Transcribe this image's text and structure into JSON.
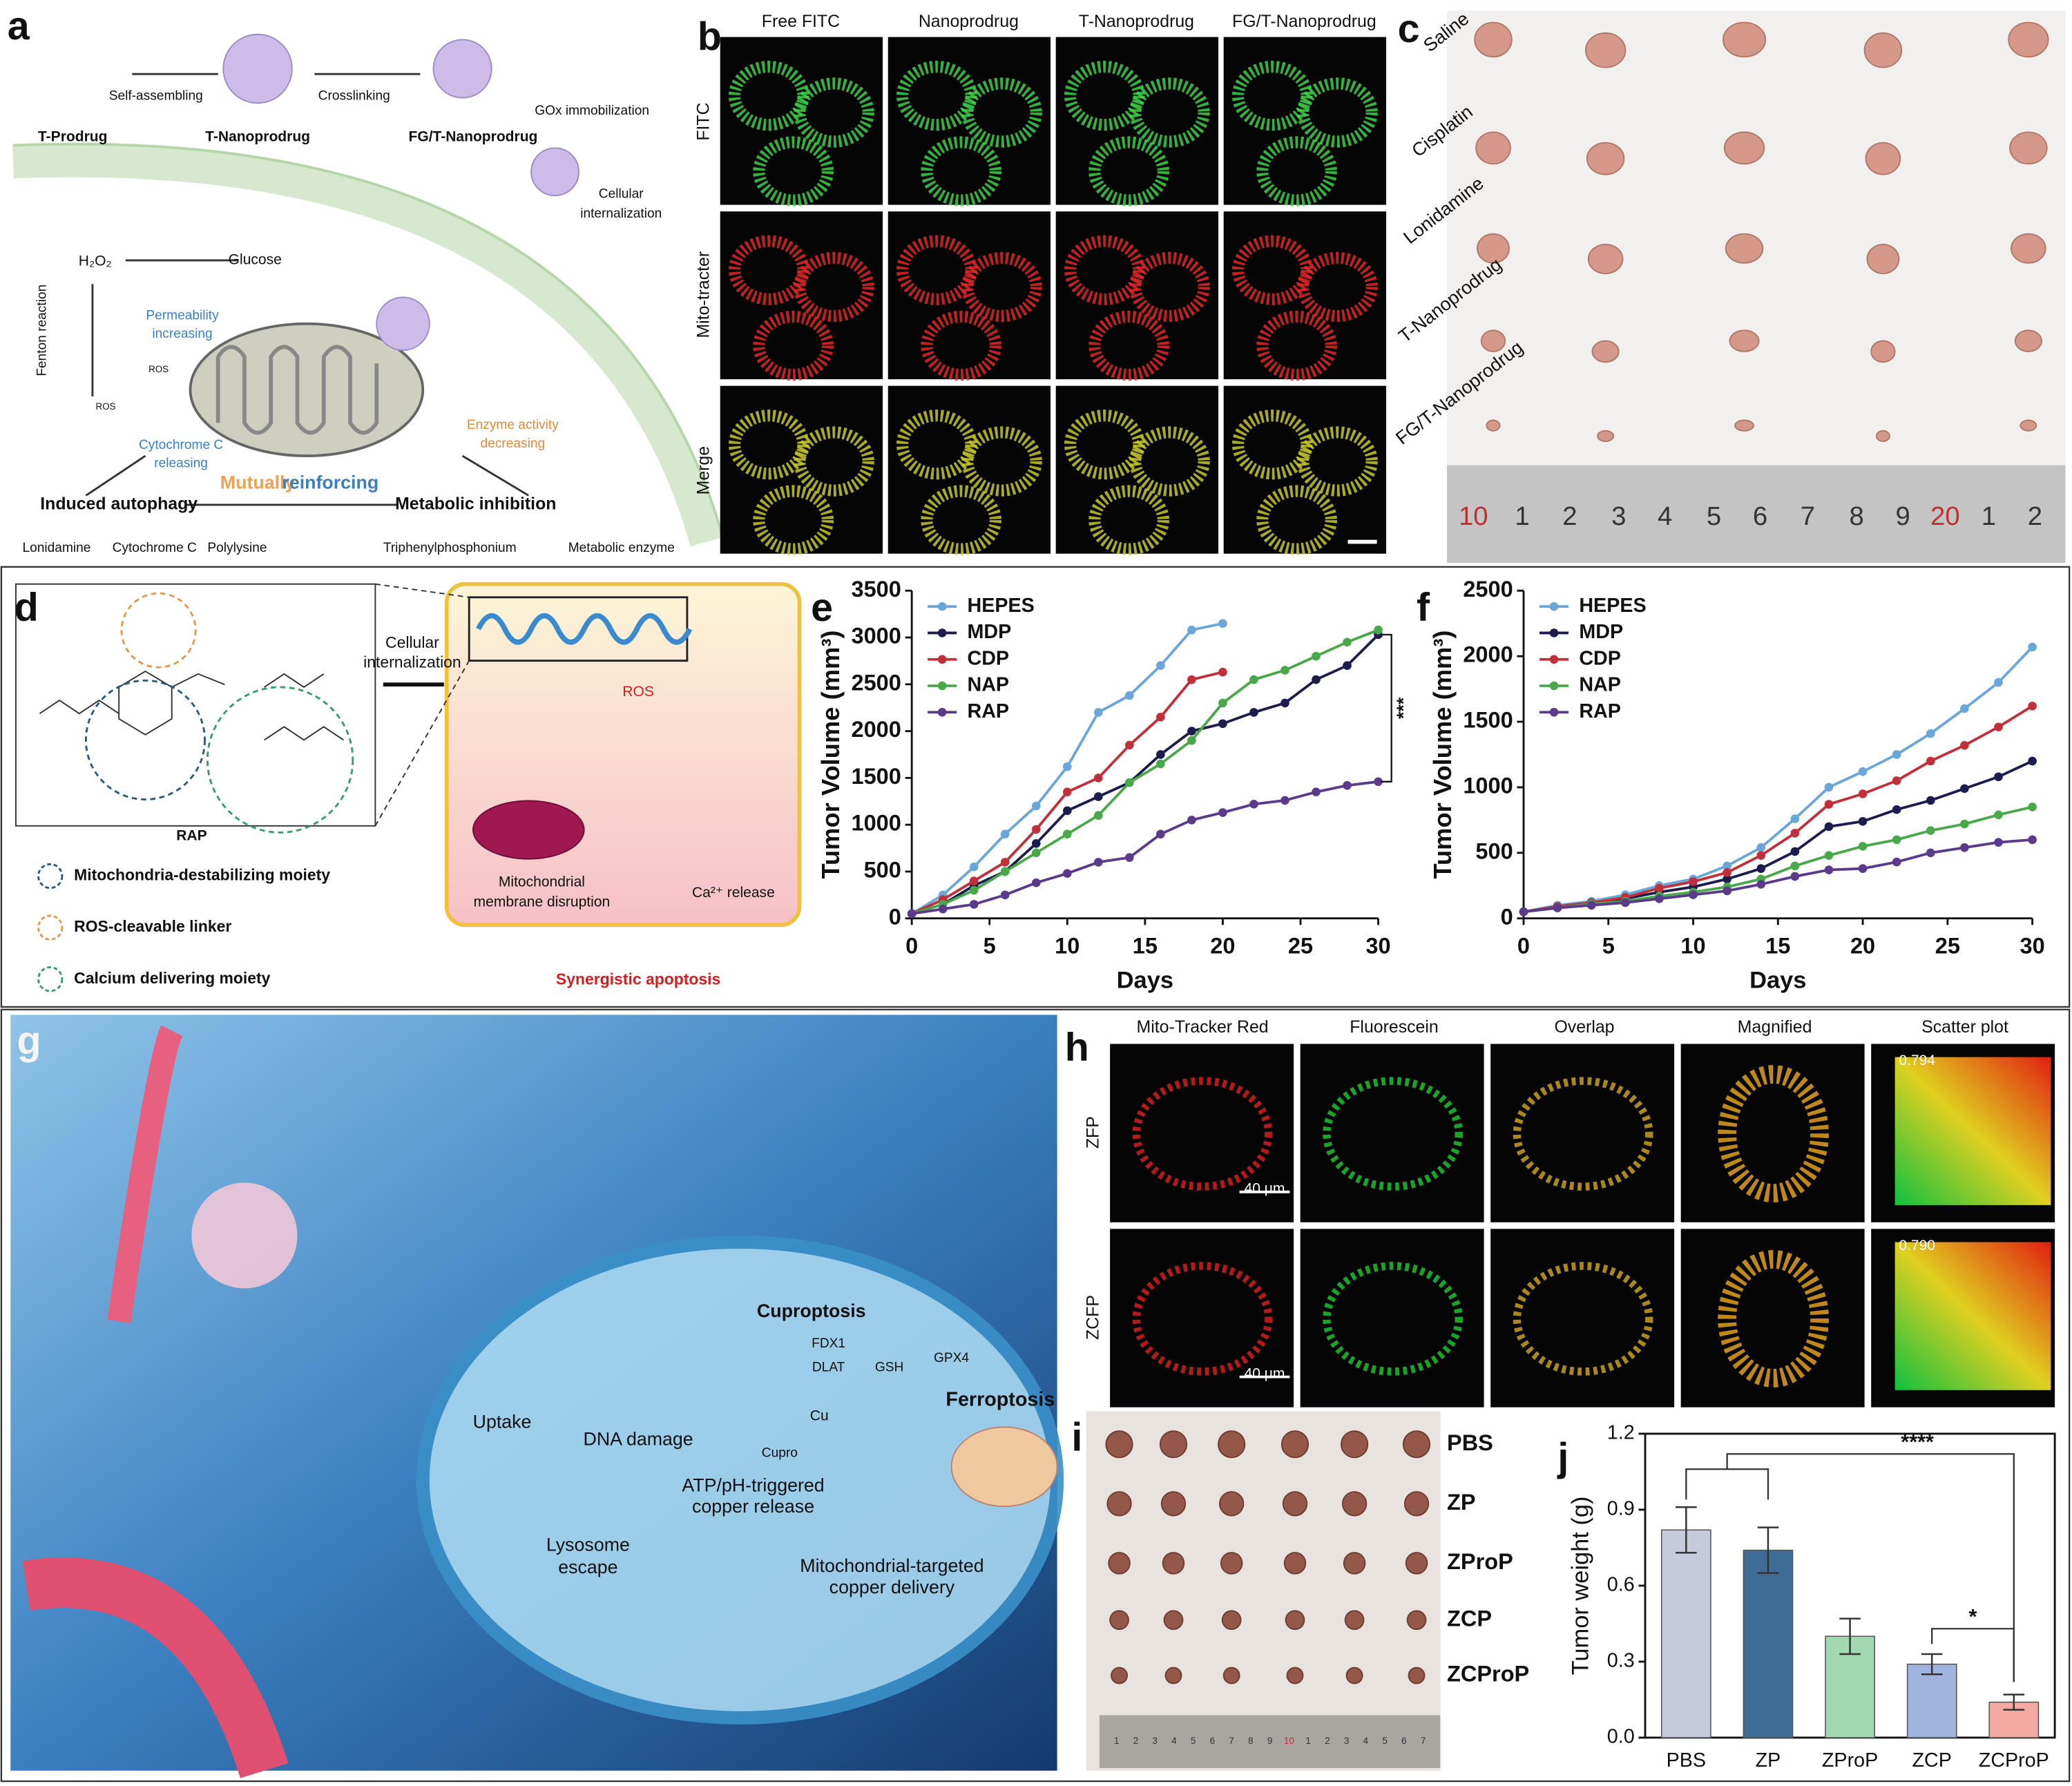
{
  "panel_letters": [
    "a",
    "b",
    "c",
    "d",
    "e",
    "f",
    "g",
    "h",
    "i",
    "j"
  ],
  "panel_a": {
    "texts": [
      "Self-assembling",
      "Crosslinking",
      "GOx immobilization",
      "T-Prodrug",
      "T-Nanoprodrug",
      "FG/T-Nanoprodrug",
      "Cellular",
      "internalization",
      "H₂O₂",
      "Glucose",
      "Fenton reaction",
      "Permeability",
      "increasing",
      "ROS",
      "ROS",
      "Cytochrome C",
      "releasing",
      "Enzyme activity",
      "decreasing",
      "Mutually",
      "reinforcing",
      "Induced autophagy",
      "Metabolic inhibition"
    ],
    "legend": [
      "Lonidamine",
      "Cytochrome C",
      "Polylysine",
      "Triphenylphosphonium",
      "Metabolic enzyme"
    ]
  },
  "panel_b": {
    "columns": [
      "Free FITC",
      "Nanoprodrug",
      "T-Nanoprodrug",
      "FG/T-Nanoprodrug"
    ],
    "rows": [
      "FITC",
      "Mito-tracter",
      "Merge"
    ]
  },
  "panel_c": {
    "groups": [
      "Saline",
      "Cisplatin",
      "Lonidamine",
      "T-Nanoprodrug",
      "FG/T-Nanoprodrug"
    ],
    "ruler": [
      "10",
      "1",
      "2",
      "3",
      "4",
      "5",
      "6",
      "7",
      "8",
      "9",
      "20",
      "1",
      "2"
    ]
  },
  "panel_d": {
    "texts": [
      "RAP",
      "Cellular",
      "internalization",
      "ROS",
      "Mitochondrial",
      "membrane disruption",
      "Ca²⁺ release",
      "Synergistic apoptosis"
    ],
    "legend": [
      "Mitochondria-destabilizing moiety",
      "ROS-cleavable linker",
      "Calcium delivering moiety"
    ]
  },
  "panel_g": {
    "texts": [
      "Cuproptosis",
      "FDX1",
      "DLAT",
      "GSH",
      "GPX4",
      "Ferroptosis",
      "Uptake",
      "DNA damage",
      "Cu",
      "Cupro",
      "ATP/pH-triggered",
      "copper release",
      "Lysosome",
      "escape",
      "Mitochondrial-targeted",
      "copper delivery"
    ]
  },
  "panel_h": {
    "columns": [
      "Mito-Tracker Red",
      "Fluorescein",
      "Overlap",
      "Magnified",
      "Scatter plot"
    ],
    "rows": [
      "ZFP",
      "ZCFP"
    ],
    "scale_bars": [
      "40 μm",
      "40 μm"
    ],
    "coefficients": [
      "0.794",
      "0.790"
    ]
  },
  "panel_i": {
    "groups": [
      "PBS",
      "ZP",
      "ZProP",
      "ZCP",
      "ZCProP"
    ],
    "ruler": [
      "1",
      "2",
      "3",
      "4",
      "5",
      "6",
      "7",
      "8",
      "9",
      "10",
      "1",
      "2",
      "3",
      "4",
      "5",
      "6",
      "7"
    ]
  },
  "chart_data": [
    {
      "type": "line",
      "x_label": "Days",
      "y_label": "Tumor Volume (mm³)",
      "xlim": [
        0,
        30
      ],
      "xticks": [
        0,
        5,
        10,
        15,
        20,
        25,
        30
      ],
      "ylim": [
        0,
        3500
      ],
      "yticks": [
        0,
        500,
        1000,
        1500,
        2000,
        2500,
        3000,
        3500
      ],
      "legend": "upper left",
      "annotations": [
        "***"
      ],
      "series": [
        {
          "name": "HEPES",
          "color": "#6aa6d8",
          "x": [
            0,
            2,
            4,
            6,
            8,
            10,
            12,
            14,
            16,
            18,
            20
          ],
          "values": [
            50,
            250,
            550,
            900,
            1200,
            1620,
            2200,
            2380,
            2700,
            3080,
            3150
          ]
        },
        {
          "name": "MDP",
          "color": "#1c1c4e",
          "x": [
            0,
            2,
            4,
            6,
            8,
            10,
            12,
            14,
            16,
            18,
            20,
            22,
            24,
            26,
            28,
            30
          ],
          "values": [
            50,
            150,
            350,
            500,
            800,
            1150,
            1300,
            1450,
            1750,
            2000,
            2080,
            2200,
            2300,
            2550,
            2700,
            3030
          ]
        },
        {
          "name": "CDP",
          "color": "#c0303a",
          "x": [
            0,
            2,
            4,
            6,
            8,
            10,
            12,
            14,
            16,
            18,
            20
          ],
          "values": [
            50,
            200,
            400,
            600,
            950,
            1350,
            1500,
            1850,
            2150,
            2550,
            2630
          ]
        },
        {
          "name": "NAP",
          "color": "#4aa84a",
          "x": [
            0,
            2,
            4,
            6,
            8,
            10,
            12,
            14,
            16,
            18,
            20,
            22,
            24,
            26,
            28,
            30
          ],
          "values": [
            50,
            150,
            300,
            500,
            700,
            900,
            1100,
            1450,
            1650,
            1900,
            2300,
            2550,
            2650,
            2800,
            2950,
            3080
          ]
        },
        {
          "name": "RAP",
          "color": "#5a3a8a",
          "x": [
            0,
            2,
            4,
            6,
            8,
            10,
            12,
            14,
            16,
            18,
            20,
            22,
            24,
            26,
            28,
            30
          ],
          "values": [
            50,
            100,
            150,
            250,
            380,
            480,
            600,
            650,
            900,
            1050,
            1130,
            1220,
            1260,
            1350,
            1420,
            1460
          ]
        }
      ]
    },
    {
      "type": "line",
      "x_label": "Days",
      "y_label": "Tumor Volume (mm³)",
      "xlim": [
        0,
        30
      ],
      "xticks": [
        0,
        5,
        10,
        15,
        20,
        25,
        30
      ],
      "ylim": [
        0,
        2500
      ],
      "yticks": [
        0,
        500,
        1000,
        1500,
        2000,
        2500
      ],
      "legend": "upper left",
      "series": [
        {
          "name": "HEPES",
          "color": "#6aa6d8",
          "x": [
            0,
            2,
            4,
            6,
            8,
            10,
            12,
            14,
            16,
            18,
            20,
            22,
            24,
            26,
            28,
            30
          ],
          "values": [
            50,
            100,
            130,
            180,
            250,
            300,
            400,
            540,
            760,
            1000,
            1120,
            1250,
            1410,
            1600,
            1800,
            2070
          ]
        },
        {
          "name": "MDP",
          "color": "#1c1c4e",
          "x": [
            0,
            2,
            4,
            6,
            8,
            10,
            12,
            14,
            16,
            18,
            20,
            22,
            24,
            26,
            28,
            30
          ],
          "values": [
            50,
            90,
            120,
            150,
            200,
            240,
            300,
            380,
            510,
            700,
            740,
            830,
            900,
            990,
            1080,
            1200
          ]
        },
        {
          "name": "CDP",
          "color": "#c0303a",
          "x": [
            0,
            2,
            4,
            6,
            8,
            10,
            12,
            14,
            16,
            18,
            20,
            22,
            24,
            26,
            28,
            30
          ],
          "values": [
            50,
            90,
            120,
            160,
            230,
            280,
            350,
            480,
            650,
            870,
            950,
            1050,
            1200,
            1320,
            1460,
            1620
          ]
        },
        {
          "name": "NAP",
          "color": "#4aa84a",
          "x": [
            0,
            2,
            4,
            6,
            8,
            10,
            12,
            14,
            16,
            18,
            20,
            22,
            24,
            26,
            28,
            30
          ],
          "values": [
            50,
            80,
            110,
            130,
            170,
            200,
            240,
            300,
            400,
            480,
            550,
            600,
            670,
            720,
            790,
            850
          ]
        },
        {
          "name": "RAP",
          "color": "#5a3a8a",
          "x": [
            0,
            2,
            4,
            6,
            8,
            10,
            12,
            14,
            16,
            18,
            20,
            22,
            24,
            26,
            28,
            30
          ],
          "values": [
            50,
            80,
            100,
            120,
            150,
            180,
            210,
            260,
            320,
            370,
            380,
            430,
            500,
            540,
            580,
            600
          ]
        }
      ]
    },
    {
      "type": "bar",
      "y_label": "Tumor weight (g)",
      "categories": [
        "PBS",
        "ZP",
        "ZProP",
        "ZCP",
        "ZCProP"
      ],
      "values": [
        0.82,
        0.74,
        0.4,
        0.29,
        0.14
      ],
      "errors": [
        0.09,
        0.09,
        0.07,
        0.04,
        0.03
      ],
      "colors": [
        "#c7c9dc",
        "#3e6c95",
        "#a3d9b1",
        "#9fb4de",
        "#f4a9a3"
      ],
      "ylim": [
        0,
        1.2
      ],
      "yticks": [
        {
          "value": 0,
          "label": "0.0"
        },
        0.3,
        0.6,
        0.9,
        1.2
      ],
      "annotations": [
        "****",
        "*"
      ]
    }
  ]
}
